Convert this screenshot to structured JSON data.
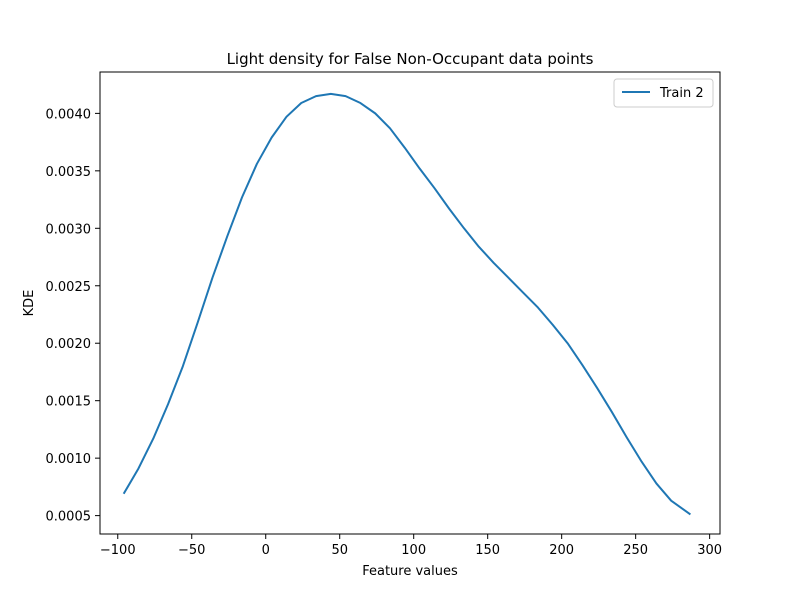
{
  "chart_data": {
    "type": "line",
    "title": "Light density for False Non-Occupant data points",
    "xlabel": "Feature values",
    "ylabel": "KDE",
    "xlim": [
      -112,
      307
    ],
    "ylim": [
      0.00034,
      0.00436
    ],
    "xticks": [
      -100,
      -50,
      0,
      50,
      100,
      150,
      200,
      250,
      300
    ],
    "xtick_labels": [
      "−100",
      "−50",
      "0",
      "50",
      "100",
      "150",
      "200",
      "250",
      "300"
    ],
    "yticks": [
      0.0005,
      0.001,
      0.0015,
      0.002,
      0.0025,
      0.003,
      0.0035,
      0.004
    ],
    "ytick_labels": [
      "0.0005",
      "0.0010",
      "0.0015",
      "0.0020",
      "0.0025",
      "0.0030",
      "0.0035",
      "0.0040"
    ],
    "grid": false,
    "legend_position": "top-right",
    "series": [
      {
        "name": "Train 2",
        "color": "#1f77b4",
        "x": [
          -96,
          -86,
          -76,
          -66,
          -56,
          -46,
          -36,
          -26,
          -16,
          -6,
          4,
          14,
          24,
          34,
          44,
          54,
          64,
          74,
          84,
          94,
          104,
          114,
          124,
          134,
          144,
          154,
          164,
          174,
          184,
          194,
          204,
          214,
          224,
          234,
          244,
          254,
          264,
          274,
          287
        ],
        "y": [
          0.00069,
          0.00091,
          0.00117,
          0.00147,
          0.0018,
          0.00218,
          0.00257,
          0.00293,
          0.00327,
          0.00356,
          0.00379,
          0.00397,
          0.00409,
          0.00415,
          0.00417,
          0.00415,
          0.00409,
          0.004,
          0.00387,
          0.0037,
          0.00352,
          0.00335,
          0.00317,
          0.003,
          0.00284,
          0.0027,
          0.00257,
          0.00244,
          0.00231,
          0.00216,
          0.002,
          0.00181,
          0.00161,
          0.0014,
          0.00118,
          0.00097,
          0.00078,
          0.00063,
          0.00051
        ]
      }
    ]
  }
}
